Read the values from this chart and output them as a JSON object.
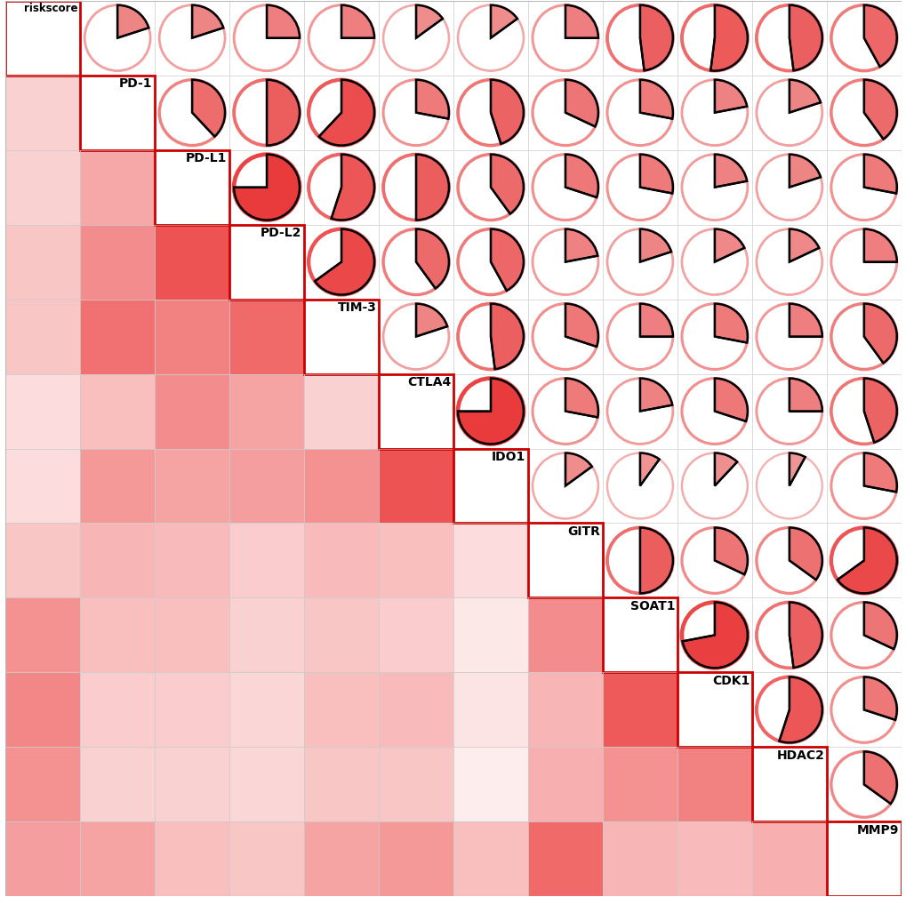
{
  "labels": [
    "riskscore",
    "PD-1",
    "PD-L1",
    "PD-L2",
    "TIM-3",
    "CTLA4",
    "IDO1",
    "GITR",
    "SOAT1",
    "CDK1",
    "HDAC2",
    "MMP9"
  ],
  "corr": [
    [
      1.0,
      0.2,
      0.2,
      0.25,
      0.25,
      0.15,
      0.15,
      0.25,
      0.48,
      0.52,
      0.48,
      0.42
    ],
    [
      0.2,
      1.0,
      0.38,
      0.5,
      0.62,
      0.28,
      0.45,
      0.32,
      0.28,
      0.22,
      0.2,
      0.4
    ],
    [
      0.2,
      0.38,
      1.0,
      0.75,
      0.55,
      0.5,
      0.4,
      0.3,
      0.28,
      0.22,
      0.2,
      0.28
    ],
    [
      0.25,
      0.5,
      0.75,
      1.0,
      0.65,
      0.4,
      0.42,
      0.22,
      0.2,
      0.18,
      0.18,
      0.25
    ],
    [
      0.25,
      0.62,
      0.55,
      0.65,
      1.0,
      0.2,
      0.48,
      0.3,
      0.25,
      0.28,
      0.25,
      0.4
    ],
    [
      0.15,
      0.28,
      0.5,
      0.4,
      0.2,
      1.0,
      0.75,
      0.28,
      0.22,
      0.3,
      0.25,
      0.45
    ],
    [
      0.15,
      0.45,
      0.4,
      0.42,
      0.48,
      0.75,
      1.0,
      0.15,
      0.1,
      0.12,
      0.08,
      0.28
    ],
    [
      0.25,
      0.32,
      0.3,
      0.22,
      0.3,
      0.28,
      0.15,
      1.0,
      0.5,
      0.32,
      0.35,
      0.65
    ],
    [
      0.48,
      0.28,
      0.28,
      0.2,
      0.25,
      0.22,
      0.1,
      0.5,
      1.0,
      0.72,
      0.48,
      0.32
    ],
    [
      0.52,
      0.22,
      0.22,
      0.18,
      0.28,
      0.3,
      0.12,
      0.32,
      0.72,
      1.0,
      0.55,
      0.3
    ],
    [
      0.48,
      0.2,
      0.2,
      0.18,
      0.25,
      0.25,
      0.08,
      0.35,
      0.48,
      0.55,
      1.0,
      0.35
    ],
    [
      0.42,
      0.4,
      0.28,
      0.25,
      0.4,
      0.45,
      0.28,
      0.65,
      0.32,
      0.3,
      0.35,
      1.0
    ]
  ],
  "bg_color": "#ffffff",
  "heatmap_low": "#ffffff",
  "heatmap_high": "#e8191a",
  "pie_fill_strong": "#e8191a",
  "pie_fill_light": "#f0a0a0",
  "circle_strong": "#e8191a",
  "circle_light": "#f5c0c0"
}
